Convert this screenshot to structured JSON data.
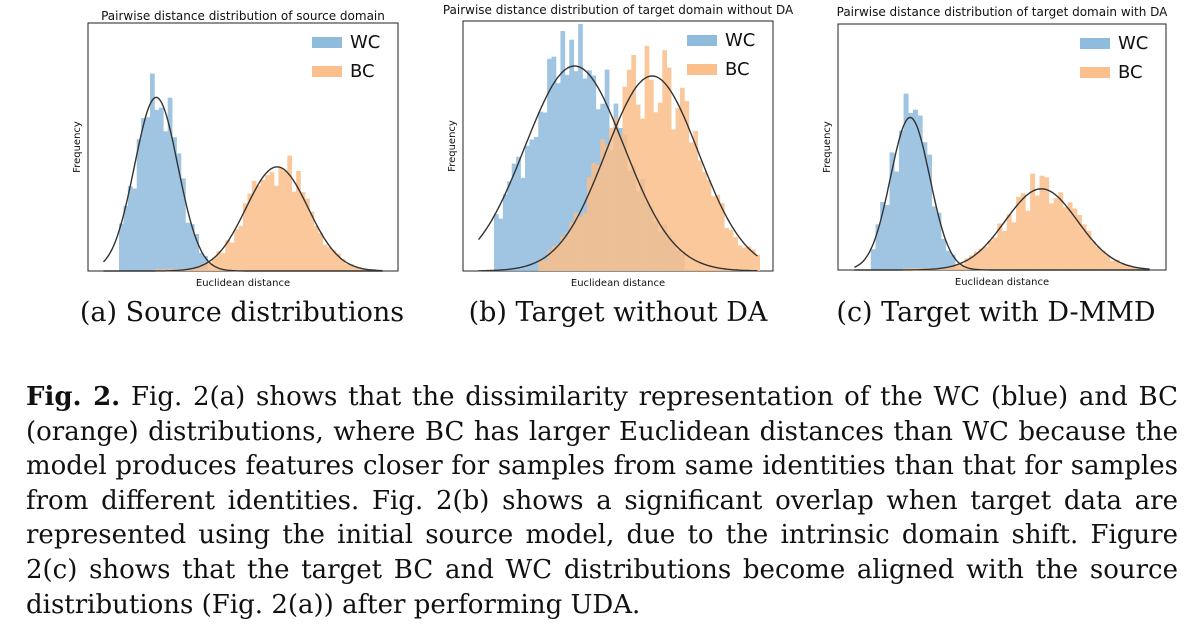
{
  "figure": {
    "subcaptions": [
      "(a) Source distributions",
      "(b) Target without DA",
      "(c) Target with D-MMD"
    ]
  },
  "caption": {
    "label": "Fig. 2.",
    "text": "Fig. 2(a) shows that the dissimilarity representation of the WC (blue) and BC (orange) distributions, where BC has larger Euclidean distances than WC because the model produces features closer for samples from same identities than that for samples from different identities. Fig. 2(b) shows a significant overlap when target data are represented using the initial source model, due to the intrinsic domain shift. Figure 2(c) shows that the target BC and WC distributions become aligned with the source distributions (Fig. 2(a)) after performing UDA."
  },
  "colors": {
    "wc": "#8fbbdd",
    "bc": "#fbbf8b",
    "curve": "#333333"
  },
  "chart_data": [
    {
      "type": "histogram",
      "title": "Pairwise distance distribution of source domain",
      "xlabel": "Euclidean distance",
      "ylabel": "Frequency",
      "legend": [
        "WC",
        "BC"
      ],
      "legend_position": "top-right",
      "ylim": [
        0,
        1
      ],
      "x_range": [
        0,
        1
      ],
      "series": [
        {
          "name": "WC",
          "mean": 0.22,
          "sd": 0.07,
          "peak": 0.7,
          "x_min": 0.1,
          "x_max": 0.39
        },
        {
          "name": "BC",
          "mean": 0.61,
          "sd": 0.1,
          "peak": 0.42,
          "x_min": 0.22,
          "x_max": 0.93
        }
      ]
    },
    {
      "type": "histogram",
      "title": "Pairwise distance distribution of target domain without DA",
      "xlabel": "Euclidean distance",
      "ylabel": "Frequency",
      "legend": [
        "WC",
        "BC"
      ],
      "legend_position": "top-right",
      "ylim": [
        0,
        1
      ],
      "x_range": [
        0,
        1
      ],
      "series": [
        {
          "name": "WC",
          "mean": 0.36,
          "sd": 0.16,
          "peak": 0.82,
          "x_min": 0.1,
          "x_max": 0.72
        },
        {
          "name": "BC",
          "mean": 0.61,
          "sd": 0.15,
          "peak": 0.78,
          "x_min": 0.24,
          "x_max": 0.96
        }
      ]
    },
    {
      "type": "histogram",
      "title": "Pairwise distance distribution of target domain with DA",
      "xlabel": "Euclidean distance",
      "ylabel": "Frequency",
      "legend": [
        "WC",
        "BC"
      ],
      "legend_position": "top-right",
      "ylim": [
        0,
        1
      ],
      "x_range": [
        0,
        1
      ],
      "series": [
        {
          "name": "WC",
          "mean": 0.22,
          "sd": 0.06,
          "peak": 0.62,
          "x_min": 0.1,
          "x_max": 0.35
        },
        {
          "name": "BC",
          "mean": 0.62,
          "sd": 0.11,
          "peak": 0.33,
          "x_min": 0.2,
          "x_max": 0.93
        }
      ]
    }
  ]
}
